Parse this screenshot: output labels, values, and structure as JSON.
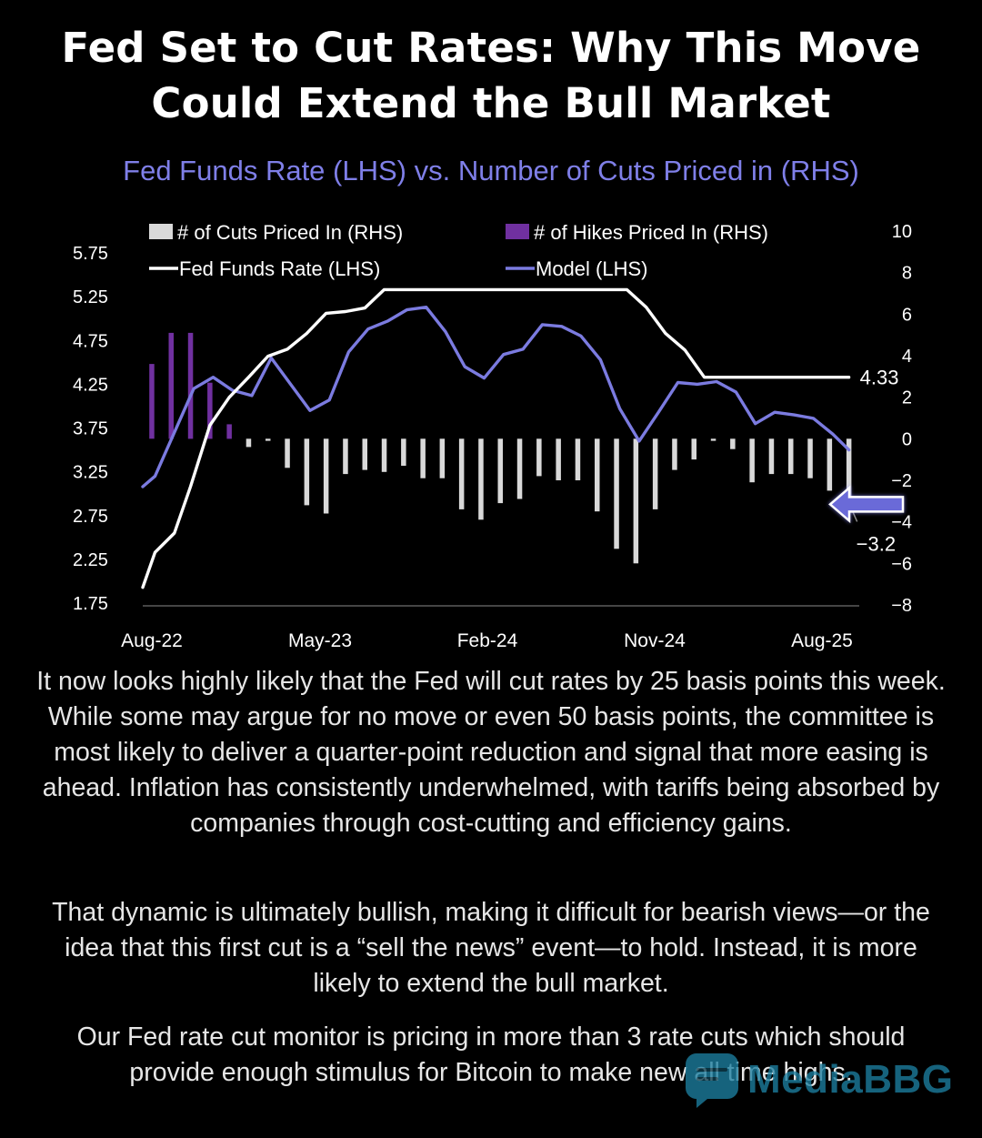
{
  "headline": {
    "line1": "Fed Set to Cut Rates: Why This Move",
    "line2": "Could Extend the Bull Market"
  },
  "chart_data": {
    "type": "bar+line",
    "title": "Fed Funds Rate (LHS) vs. Number of Cuts Priced in (RHS)",
    "x_ticks": [
      "Aug-22",
      "May-23",
      "Feb-24",
      "Nov-24",
      "Aug-25"
    ],
    "x_range": [
      "2022-08",
      "2025-09"
    ],
    "y_left": {
      "ticks": [
        "5.75",
        "5.25",
        "4.75",
        "4.25",
        "3.75",
        "3.25",
        "2.75",
        "2.25",
        "1.75"
      ],
      "range": [
        1.75,
        5.75
      ]
    },
    "y_right": {
      "ticks": [
        "10",
        "8",
        "6",
        "4",
        "2",
        "0",
        "-2",
        "-4",
        "-6",
        "-8"
      ],
      "range": [
        -8,
        10
      ]
    },
    "legend": [
      {
        "label": "# of Cuts Priced In (RHS)",
        "color": "#d9d9d9",
        "kind": "bar"
      },
      {
        "label": "# of Hikes Priced In (RHS)",
        "color": "#7030a0",
        "kind": "bar"
      },
      {
        "label": "Fed Funds Rate (LHS)",
        "color": "#ffffff",
        "kind": "line"
      },
      {
        "label": "Model (LHS)",
        "color": "#7b7be0",
        "kind": "line"
      }
    ],
    "series": [
      {
        "name": "# of Hikes Priced In (RHS)",
        "axis": "right",
        "color": "#7030a0",
        "x": [
          "2022-08-15",
          "2022-09-15",
          "2022-10-15",
          "2022-11-15",
          "2022-12-15"
        ],
        "values": [
          3.6,
          5.1,
          5.1,
          2.7,
          0.7
        ]
      },
      {
        "name": "# of Cuts Priced In (RHS)",
        "axis": "right",
        "color": "#d9d9d9",
        "x": [
          "2023-01-15",
          "2023-02-15",
          "2023-03-15",
          "2023-04-15",
          "2023-05-15",
          "2023-06-15",
          "2023-07-15",
          "2023-08-15",
          "2023-09-15",
          "2023-10-15",
          "2023-11-15",
          "2023-12-15",
          "2024-01-15",
          "2024-02-15",
          "2024-03-15",
          "2024-04-15",
          "2024-05-15",
          "2024-06-15",
          "2024-07-15",
          "2024-08-15",
          "2024-09-15",
          "2024-10-15",
          "2024-11-15",
          "2024-12-15",
          "2025-01-15",
          "2025-02-15",
          "2025-03-15",
          "2025-04-15",
          "2025-05-15",
          "2025-06-15",
          "2025-07-15",
          "2025-08-15"
        ],
        "values": [
          -0.4,
          -0.1,
          -1.4,
          -3.2,
          -3.6,
          -1.7,
          -1.5,
          -1.6,
          -1.3,
          -1.9,
          -1.9,
          -3.4,
          -3.9,
          -3.1,
          -2.9,
          -1.8,
          -2.0,
          -2.0,
          -3.5,
          -5.3,
          -6.0,
          -3.4,
          -1.5,
          -1.0,
          -0.1,
          -0.5,
          -2.1,
          -1.7,
          -1.7,
          -1.9,
          -2.5,
          -3.2
        ]
      },
      {
        "name": "Fed Funds Rate (LHS)",
        "axis": "left",
        "color": "#ffffff",
        "x": [
          "2022-08-01",
          "2022-08-20",
          "2022-09-20",
          "2022-10-15",
          "2022-11-15",
          "2022-12-15",
          "2023-01-15",
          "2023-02-15",
          "2023-03-15",
          "2023-04-15",
          "2023-05-15",
          "2023-06-15",
          "2023-07-15",
          "2023-08-15",
          "2024-09-01",
          "2024-10-01",
          "2024-11-01",
          "2024-12-01",
          "2025-01-01",
          "2025-08-15"
        ],
        "values": [
          1.93,
          2.33,
          2.55,
          3.08,
          3.78,
          4.1,
          4.33,
          4.57,
          4.65,
          4.83,
          5.06,
          5.08,
          5.12,
          5.33,
          5.33,
          5.13,
          4.83,
          4.64,
          4.33,
          4.33
        ]
      },
      {
        "name": "Model (LHS)",
        "axis": "left",
        "color": "#7b7be0",
        "x": [
          "2022-08-01",
          "2022-08-20",
          "2022-09-20",
          "2022-10-20",
          "2022-11-20",
          "2022-12-20",
          "2023-01-20",
          "2023-02-20",
          "2023-03-20",
          "2023-04-20",
          "2023-05-20",
          "2023-06-20",
          "2023-07-20",
          "2023-08-20",
          "2023-09-20",
          "2023-10-20",
          "2023-11-20",
          "2023-12-20",
          "2024-01-20",
          "2024-02-20",
          "2024-03-20",
          "2024-04-20",
          "2024-05-20",
          "2024-06-20",
          "2024-07-20",
          "2024-08-20",
          "2024-09-20",
          "2024-10-20",
          "2024-11-20",
          "2024-12-20",
          "2025-01-20",
          "2025-02-20",
          "2025-03-20",
          "2025-04-20",
          "2025-05-20",
          "2025-06-20",
          "2025-07-20",
          "2025-08-15"
        ],
        "values": [
          3.08,
          3.2,
          3.7,
          4.2,
          4.33,
          4.18,
          4.12,
          4.55,
          4.25,
          3.95,
          4.07,
          4.62,
          4.88,
          4.97,
          5.1,
          5.13,
          4.85,
          4.45,
          4.32,
          4.59,
          4.65,
          4.93,
          4.91,
          4.8,
          4.53,
          3.97,
          3.6,
          3.93,
          4.27,
          4.25,
          4.28,
          4.16,
          3.8,
          3.93,
          3.9,
          3.86,
          3.68,
          3.5
        ]
      }
    ],
    "annotations": [
      {
        "text": "4.33",
        "series": "Fed Funds Rate (LHS)"
      },
      {
        "text": "-3.2",
        "series": "# of Cuts Priced In (RHS)"
      }
    ],
    "grid": false,
    "legend_position": "top"
  },
  "paragraphs": {
    "p1": "It now looks highly likely that the Fed will cut rates by 25 basis points this week. While some may argue for no move or even 50 basis points, the committee is most likely to deliver a quarter-point reduction and signal that more easing is ahead. Inflation has consistently underwhelmed, with tariffs being absorbed by companies through cost-cutting and efficiency gains.",
    "p2": "That dynamic is ultimately bullish, making it difficult for bearish views—or the idea that this first cut is a “sell the news” event—to hold. Instead, it is more likely to extend the bull market.",
    "p3": "Our Fed rate cut monitor is pricing in more than 3 rate cuts which should provide enough stimulus for Bitcoin to make new all time highs."
  },
  "watermark": {
    "text": "MediaBBG",
    "icon": "chat-bubble-icon"
  }
}
